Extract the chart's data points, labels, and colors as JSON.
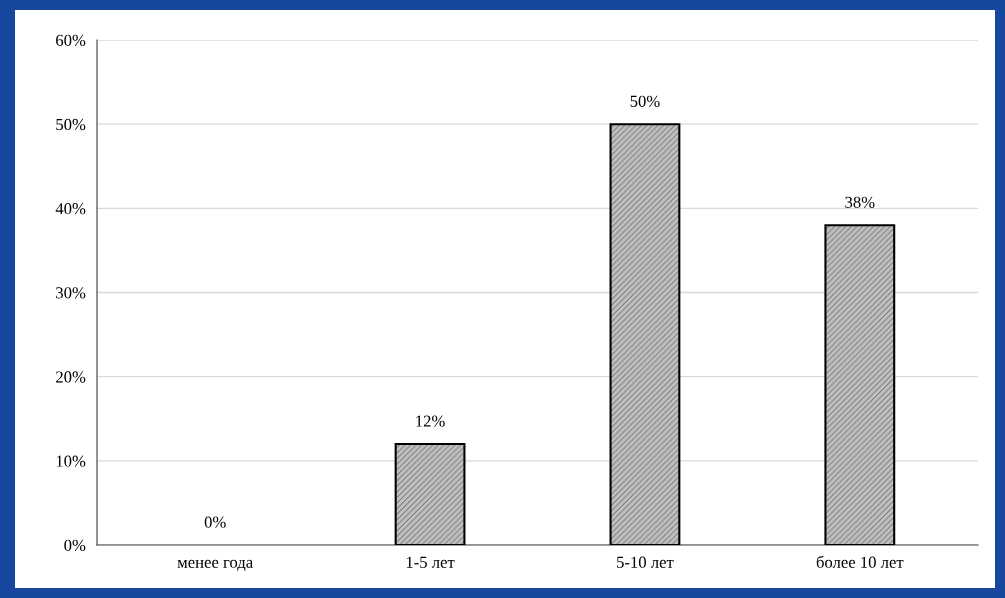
{
  "chart_data": {
    "type": "bar",
    "categories": [
      "менее года",
      "1-5 лет",
      "5-10 лет",
      "более 10 лет"
    ],
    "values": [
      0,
      12,
      50,
      38
    ],
    "value_labels": [
      "0%",
      "12%",
      "50%",
      "38%"
    ],
    "color": "#c0c0c0",
    "ylim": [
      0,
      60
    ],
    "yticks": [
      {
        "value": 0,
        "label": "0%"
      },
      {
        "value": 10,
        "label": "10%"
      },
      {
        "value": 20,
        "label": "20%"
      },
      {
        "value": 30,
        "label": "30%"
      },
      {
        "value": 40,
        "label": "40%"
      },
      {
        "value": 50,
        "label": "50%"
      },
      {
        "value": 60,
        "label": "60%"
      }
    ],
    "grid": "y"
  }
}
